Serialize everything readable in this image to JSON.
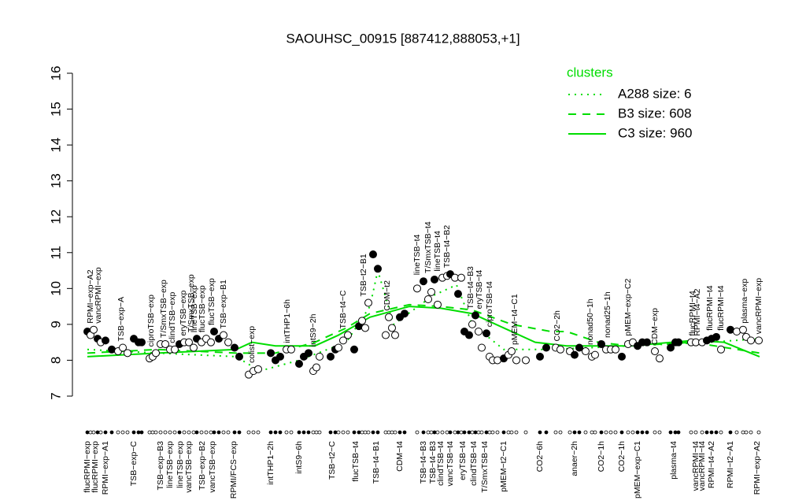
{
  "chart_data": {
    "type": "scatter",
    "title": "SAOUHSC_00915 [887412,888053,+1]",
    "ylim": [
      7,
      16
    ],
    "yticks": [
      7,
      8,
      9,
      10,
      11,
      12,
      13,
      14,
      15,
      16
    ],
    "xlim": [
      105,
      975
    ],
    "legend_title": "clusters",
    "points": {
      "x": [
        111,
        115,
        119,
        124,
        128,
        134,
        142,
        150,
        156,
        162,
        170,
        176,
        180,
        190,
        194,
        198,
        204,
        210,
        216,
        222,
        228,
        234,
        240,
        246,
        250,
        256,
        262,
        268,
        272,
        278,
        284,
        290,
        298,
        304,
        316,
        322,
        328,
        344,
        350,
        356,
        364,
        370,
        380,
        386,
        392,
        398,
        402,
        406,
        420,
        426,
        430,
        436,
        442,
        450,
        456,
        460,
        464,
        468,
        474,
        480,
        490,
        494,
        498,
        502,
        508,
        514,
        530,
        538,
        544,
        548,
        552,
        556,
        562,
        568,
        572,
        578,
        582,
        586,
        590,
        596,
        600,
        604,
        608,
        612,
        618,
        622,
        626,
        632,
        640,
        646,
        650,
        656,
        668,
        686,
        694,
        706,
        712,
        724,
        730,
        736,
        744,
        752,
        756,
        764,
        770,
        776,
        782,
        790,
        798,
        804,
        810,
        816,
        822,
        832,
        838,
        852,
        858,
        862,
        878,
        884,
        892,
        898,
        904,
        910,
        916,
        928,
        936,
        944,
        948,
        954,
        964
      ],
      "y": [
        8.8,
        8.7,
        8.85,
        8.6,
        8.5,
        8.55,
        8.3,
        8.25,
        8.35,
        8.2,
        8.6,
        8.5,
        8.5,
        8.05,
        8.1,
        8.2,
        8.45,
        8.45,
        8.3,
        8.3,
        8.45,
        8.5,
        8.5,
        8.35,
        8.6,
        8.5,
        8.6,
        8.5,
        8.8,
        8.6,
        8.7,
        8.5,
        8.35,
        8.1,
        7.6,
        7.7,
        7.75,
        8.2,
        8.0,
        8.1,
        8.3,
        8.3,
        7.9,
        8.1,
        8.2,
        7.7,
        7.8,
        8.1,
        8.1,
        8.3,
        8.35,
        8.55,
        8.7,
        8.3,
        8.95,
        9.1,
        8.9,
        9.6,
        10.95,
        10.55,
        8.7,
        9.2,
        8.9,
        8.7,
        9.2,
        9.3,
        10.0,
        10.2,
        9.7,
        9.9,
        10.25,
        9.55,
        10.3,
        10.35,
        10.4,
        10.3,
        9.85,
        10.3,
        8.8,
        8.7,
        9.0,
        9.25,
        8.8,
        8.35,
        8.75,
        8.1,
        8.0,
        8.0,
        8.05,
        8.15,
        8.25,
        8.0,
        8.0,
        8.1,
        8.35,
        8.35,
        8.3,
        8.25,
        8.15,
        8.35,
        8.25,
        8.1,
        8.15,
        8.45,
        8.3,
        8.3,
        8.3,
        8.1,
        8.45,
        8.5,
        8.4,
        8.5,
        8.5,
        8.25,
        8.05,
        8.35,
        8.5,
        8.5,
        8.5,
        8.5,
        8.5,
        8.55,
        8.6,
        8.65,
        8.3,
        8.85,
        8.8,
        8.85,
        8.65,
        8.55,
        8.55
      ],
      "fill": [
        "black",
        "white",
        "white",
        "black",
        "white",
        "black",
        "black",
        "white",
        "white",
        "white",
        "black",
        "black",
        "black",
        "white",
        "white",
        "white",
        "white",
        "white",
        "white",
        "white",
        "black",
        "white",
        "white",
        "white",
        "black",
        "white",
        "white",
        "white",
        "black",
        "black",
        "white",
        "white",
        "black",
        "black",
        "white",
        "white",
        "white",
        "black",
        "black",
        "black",
        "white",
        "white",
        "black",
        "black",
        "black",
        "white",
        "white",
        "white",
        "black",
        "black",
        "white",
        "white",
        "white",
        "black",
        "black",
        "white",
        "white",
        "white",
        "black",
        "black",
        "white",
        "white",
        "white",
        "white",
        "black",
        "black",
        "white",
        "black",
        "white",
        "white",
        "black",
        "white",
        "white",
        "white",
        "black",
        "white",
        "black",
        "white",
        "black",
        "black",
        "white",
        "black",
        "white",
        "white",
        "black",
        "white",
        "white",
        "white",
        "black",
        "white",
        "white",
        "white",
        "white",
        "black",
        "black",
        "white",
        "white",
        "white",
        "black",
        "black",
        "white",
        "white",
        "white",
        "black",
        "white",
        "white",
        "white",
        "black",
        "white",
        "white",
        "black",
        "black",
        "black",
        "white",
        "white",
        "black",
        "black",
        "black",
        "white",
        "white",
        "white",
        "black",
        "black",
        "black",
        "white",
        "black",
        "white",
        "white",
        "white",
        "white",
        "white"
      ]
    },
    "series": [
      {
        "name": "A288 size: 6",
        "color": "#00dd00",
        "style": "dotted",
        "x": [
          111,
          200,
          300,
          330,
          380,
          440,
          470,
          480,
          500,
          550,
          580,
          600,
          640,
          700,
          800,
          900,
          965
        ],
        "values": [
          8.3,
          8.2,
          8.1,
          7.7,
          8.0,
          8.5,
          9.5,
          10.5,
          9.0,
          9.8,
          10.1,
          9.0,
          8.3,
          8.3,
          8.4,
          8.5,
          8.6
        ]
      },
      {
        "name": "B3 size: 608",
        "color": "#00dd00",
        "style": "dashed",
        "x": [
          111,
          200,
          300,
          350,
          400,
          440,
          470,
          520,
          560,
          600,
          650,
          700,
          720,
          760,
          800,
          880,
          965
        ],
        "values": [
          8.2,
          8.3,
          8.2,
          8.2,
          8.5,
          8.9,
          9.3,
          9.55,
          9.5,
          9.4,
          9.0,
          8.8,
          8.8,
          8.5,
          8.4,
          8.5,
          8.2
        ]
      },
      {
        "name": "C3 size: 960",
        "color": "#00dd00",
        "style": "solid",
        "x": [
          111,
          200,
          300,
          320,
          350,
          400,
          430,
          470,
          520,
          560,
          600,
          640,
          680,
          720,
          800,
          880,
          920,
          965
        ],
        "values": [
          8.1,
          8.2,
          8.3,
          8.5,
          8.4,
          8.4,
          8.7,
          9.2,
          9.5,
          9.45,
          9.3,
          8.9,
          8.5,
          8.4,
          8.4,
          8.55,
          8.5,
          8.1
        ]
      }
    ],
    "upper_labels": [
      {
        "x": 115,
        "text": "RPMI−exp−A2"
      },
      {
        "x": 125,
        "text": "vancRPMI−exp"
      },
      {
        "x": 154,
        "text": "TSB−exp−A"
      },
      {
        "x": 192,
        "text": "ciproTSB−exp"
      },
      {
        "x": 208,
        "text": "T/SmxTSB−exp"
      },
      {
        "x": 219,
        "text": "clindTSB−exp"
      },
      {
        "x": 233,
        "text": "eryTSB−exp"
      },
      {
        "x": 243,
        "text": "T/SmxTSB−exp"
      },
      {
        "x": 247,
        "text": "lineTSB−exp"
      },
      {
        "x": 257,
        "text": "flucTSB−exp"
      },
      {
        "x": 269,
        "text": "flucTSB−exp"
      },
      {
        "x": 284,
        "text": "TSB−exp−B1"
      },
      {
        "x": 320,
        "text": "colist−exp"
      },
      {
        "x": 365,
        "text": "intTHP1−6h"
      },
      {
        "x": 398,
        "text": "intS9−2h"
      },
      {
        "x": 436,
        "text": "TSB−t4−C"
      },
      {
        "x": 462,
        "text": "TSB−t2−B1"
      },
      {
        "x": 492,
        "text": "CDM−t2"
      },
      {
        "x": 530,
        "text": "lineTSB−t4"
      },
      {
        "x": 544,
        "text": "T/SmxTSB−t4"
      },
      {
        "x": 556,
        "text": "lineTSB−t4"
      },
      {
        "x": 568,
        "text": "TSB−t4−B2"
      },
      {
        "x": 598,
        "text": "TSB−t4−B3"
      },
      {
        "x": 609,
        "text": "eryTSB−t4"
      },
      {
        "x": 622,
        "text": "ciproTSB−t4"
      },
      {
        "x": 654,
        "text": "pMEM−t4−C1"
      },
      {
        "x": 708,
        "text": "CO2−2h"
      },
      {
        "x": 750,
        "text": "nonad50−1h"
      },
      {
        "x": 772,
        "text": "nonad25−1h"
      },
      {
        "x": 798,
        "text": "pMEM−exp−C2"
      },
      {
        "x": 832,
        "text": "CDM−exp"
      },
      {
        "x": 880,
        "text": "flucRPMI−t4"
      },
      {
        "x": 886,
        "text": "RPMI−t4−A2"
      },
      {
        "x": 902,
        "text": "flucRPMI−t4"
      },
      {
        "x": 916,
        "text": "flucRPMI−t4"
      },
      {
        "x": 946,
        "text": "plasma−exp"
      },
      {
        "x": 964,
        "text": "vancRPMI−exp"
      }
    ],
    "lower_labels": [
      {
        "x": 111,
        "text": "flucRPMI−exp"
      },
      {
        "x": 121,
        "text": "flucRPMI−exp"
      },
      {
        "x": 134,
        "text": "RPMI−exp−A1"
      },
      {
        "x": 170,
        "text": "TSB−exp−C"
      },
      {
        "x": 204,
        "text": "TSB−exp−B3"
      },
      {
        "x": 216,
        "text": "lineTSB−exp"
      },
      {
        "x": 229,
        "text": "lineTSB−exp"
      },
      {
        "x": 240,
        "text": "vancTSB−exp"
      },
      {
        "x": 257,
        "text": "TSB−exp−B2"
      },
      {
        "x": 270,
        "text": "vancTSB−exp"
      },
      {
        "x": 297,
        "text": "RPMI/FCS−exp"
      },
      {
        "x": 344,
        "text": "intTHP1−2h"
      },
      {
        "x": 380,
        "text": "intS9−6h"
      },
      {
        "x": 422,
        "text": "TSB−t2−C"
      },
      {
        "x": 452,
        "text": "flucTSB−t4"
      },
      {
        "x": 478,
        "text": "TSB−t4−B1"
      },
      {
        "x": 508,
        "text": "CDM−t4"
      },
      {
        "x": 538,
        "text": "TSB−t4−B3"
      },
      {
        "x": 550,
        "text": "TSB−t4−B3"
      },
      {
        "x": 560,
        "text": "clindTSB−t4"
      },
      {
        "x": 572,
        "text": "vancTSB−t4"
      },
      {
        "x": 588,
        "text": "eryTSB−t4"
      },
      {
        "x": 602,
        "text": "clindTSB−t4"
      },
      {
        "x": 616,
        "text": "T/SmxTSB−t4"
      },
      {
        "x": 640,
        "text": "pMEM−t2−C1"
      },
      {
        "x": 686,
        "text": "CO2−6h"
      },
      {
        "x": 730,
        "text": "anaer−2h"
      },
      {
        "x": 764,
        "text": "CO2−1h"
      },
      {
        "x": 790,
        "text": "CO2−1h"
      },
      {
        "x": 810,
        "text": "pMEM−exp−C1"
      },
      {
        "x": 856,
        "text": "plasma−t4"
      },
      {
        "x": 884,
        "text": "vancRPMI−t4"
      },
      {
        "x": 892,
        "text": "vancRPMI−t4"
      },
      {
        "x": 904,
        "text": "RPMI−t4−A2"
      },
      {
        "x": 928,
        "text": "RPMI−t2−A1"
      },
      {
        "x": 962,
        "text": "RPMI−exp−A2"
      }
    ]
  }
}
